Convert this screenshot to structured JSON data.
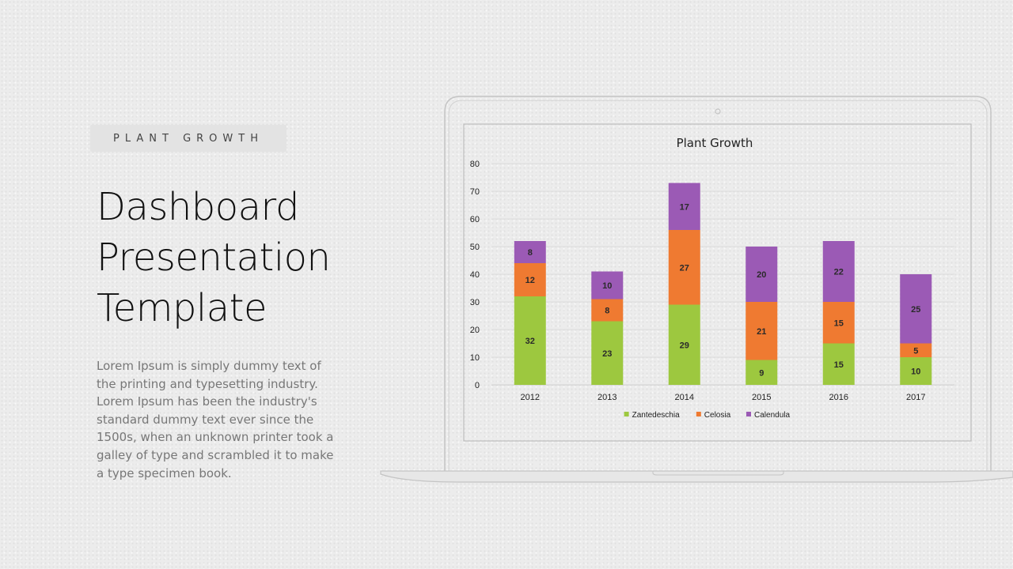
{
  "slide": {
    "tag": "PLANT GROWTH",
    "title_lines": [
      "Dashboard",
      "Presentation",
      "Template"
    ],
    "body": "Lorem Ipsum is simply dummy text of the printing and typesetting industry. Lorem Ipsum has been the industry's standard dummy text ever since the 1500s, when an unknown printer took a galley of type and scrambled it to make a type specimen book."
  },
  "chart_data": {
    "type": "bar",
    "stacked": true,
    "title": "Plant Growth",
    "categories": [
      "2012",
      "2013",
      "2014",
      "2015",
      "2016",
      "2017"
    ],
    "series": [
      {
        "name": "Zantedeschia",
        "values": [
          32,
          23,
          29,
          9,
          15,
          10
        ],
        "color": "#9dc83f"
      },
      {
        "name": "Celosia",
        "values": [
          12,
          8,
          27,
          21,
          15,
          5
        ],
        "color": "#ef7a31"
      },
      {
        "name": "Calendula",
        "values": [
          8,
          10,
          17,
          20,
          22,
          25
        ],
        "color": "#9b5ab5"
      }
    ],
    "ylim": [
      0,
      80
    ],
    "yticks": [
      0,
      10,
      20,
      30,
      40,
      50,
      60,
      70,
      80
    ],
    "grid": true,
    "legend": "bottom"
  }
}
